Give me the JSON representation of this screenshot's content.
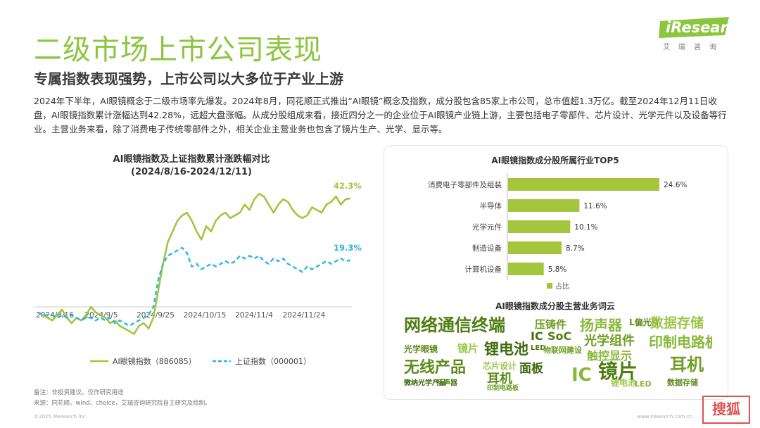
{
  "header": {
    "title": "二级市场上市公司表现",
    "subtitle": "专属指数表现强势，上市公司以大多位于产业上游",
    "body": "2024年下半年，AI眼镜概念于二级市场率先爆发。2024年8月，同花顺正式推出“AI眼镜”概念及指数，成分股包含85家上市公司，总市值超1.3万亿。截至2024年12月11日收盘，AI眼镜指数累计涨幅达到42.28%，远超大盘涨幅。从成分股组成来看，接近四分之一的企业位于AI眼镜产业链上游，主要包括电子零部件、芯片设计、光学元件以及设备等行业。主营业务来看，除了消费电子传统零部件之外，相关企业主营业务也包含了镜片生产、光学、显示等。"
  },
  "logo": {
    "word": "iResearch",
    "sub": "艾瑞咨询"
  },
  "chart_data": [
    {
      "type": "line",
      "title": "AI眼镜指数及上证指数累计涨跌幅对比",
      "subtitle": "(2024/8/16-2024/12/11)",
      "x_tick_labels": [
        "2024/8/16",
        "2024/9/5",
        "2024/9/25",
        "2024/10/15",
        "2024/11/4",
        "2024/11/24"
      ],
      "ylim": [
        -10,
        48
      ],
      "series": [
        {
          "name": "AI眼镜指数（886085）",
          "color": "#a3c63c",
          "end_label": "42.3%",
          "values": [
            0,
            -1,
            -2,
            -3,
            -1,
            1,
            -2,
            -4,
            -2,
            -3,
            -1,
            2,
            0,
            -1,
            -2,
            -4,
            -3,
            -5,
            -6,
            -7,
            -8,
            -5,
            -4,
            -6,
            -2,
            8,
            18,
            26,
            30,
            34,
            36,
            37,
            34,
            30,
            27,
            32,
            30,
            34,
            36,
            37,
            35,
            36,
            37,
            40,
            38,
            42,
            44,
            43,
            40,
            37,
            40,
            42,
            41,
            38,
            36,
            35,
            36,
            39,
            38,
            37,
            40,
            41,
            43,
            40,
            42,
            42.3
          ]
        },
        {
          "name": "上证指数（000001）",
          "color": "#29b6e9",
          "end_label": "19.3%",
          "values": [
            0,
            -1,
            -1,
            -1,
            -2,
            -1,
            -2,
            -1,
            -2,
            -3,
            -2,
            -2,
            -3,
            -2,
            -3,
            -2,
            -4,
            -3,
            -4,
            -5,
            -4,
            -3,
            -2,
            -1,
            2,
            12,
            18,
            21,
            22,
            23,
            24,
            22,
            17,
            18,
            16,
            17,
            18,
            17,
            18,
            19,
            18,
            19,
            21,
            20,
            21,
            20,
            21,
            19,
            18,
            20,
            19,
            20,
            18,
            17,
            16,
            15,
            17,
            16,
            17,
            18,
            19,
            18,
            19,
            20,
            19,
            19.3
          ]
        }
      ]
    },
    {
      "type": "bar",
      "orientation": "horizontal",
      "title": "AI眼镜指数成分股所属行业TOP5",
      "categories": [
        "消费电子零部件及组装",
        "半导体",
        "光学元件",
        "制造设备",
        "计算机设备"
      ],
      "values": [
        24.6,
        11.6,
        10.1,
        8.7,
        5.8
      ],
      "value_labels": [
        "24.6%",
        "11.6%",
        "10.1%",
        "8.7%",
        "5.8%"
      ],
      "legend": "占比",
      "color": "#a3c63c"
    }
  ],
  "wordcloud": {
    "title": "AI眼镜指数成分股主营业务词云",
    "words": [
      "网络通信终端",
      "压铸件",
      "扬声器",
      "L偏光片",
      "数据存储",
      "IC",
      "SoC",
      "光学组件",
      "印制电路板",
      "光学眼镜",
      "镜片",
      "锂电池",
      "LED",
      "物联网建设",
      "触控显示",
      "无线产品",
      "芯片设计",
      "面板",
      "镜片",
      "耳机",
      "IC",
      "耳机",
      "锂电池",
      "微纳光学产品",
      "扬声器",
      "印制电路板",
      "LED",
      "数据存储"
    ]
  },
  "footer": {
    "note": "备注：非投资建议，仅作研究用途",
    "source": "来源：同花顺、wind、choice，艾瑞咨询研究院自主研究及绘制。",
    "copyright": "©2025 iResearch Inc.",
    "url": "www.iresearch.com.cn",
    "stamp": "搜狐"
  }
}
